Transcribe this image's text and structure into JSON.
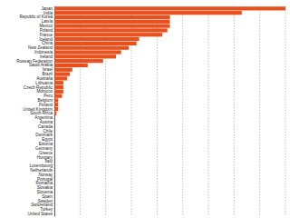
{
  "chart_data": {
    "type": "bar",
    "orientation": "horizontal",
    "categories": [
      "Japan",
      "India",
      "Republic of Korea",
      "Latvia",
      "Mexico",
      "Poland",
      "France",
      "Iceland",
      "China",
      "New Zealand",
      "Indonesia",
      "Ireland",
      "Russian Federation",
      "Saudi Arabia",
      "Israel",
      "Brazil",
      "Australia",
      "Lithuania",
      "Czech Republic",
      "Morocco",
      "Peru",
      "Belgium",
      "Finland",
      "United Kingdom",
      "South Africa",
      "Argentina",
      "Austria",
      "Canada",
      "Chile",
      "Denmark",
      "Egypt",
      "Estonia",
      "Germany",
      "Greece",
      "Hungary",
      "Italy",
      "Luxembourg",
      "Netherlands",
      "Norway",
      "Portugal",
      "Romania",
      "Slovakia",
      "Slovenia",
      "Spain",
      "Sweden",
      "Switzerland",
      "Turkey",
      "United States"
    ],
    "values": [
      9.0,
      7.3,
      4.5,
      4.5,
      4.5,
      4.4,
      4.2,
      3.3,
      3.2,
      2.9,
      2.6,
      2.4,
      1.9,
      1.3,
      0.7,
      0.6,
      0.5,
      0.35,
      0.35,
      0.35,
      0.3,
      0.15,
      0.15,
      0.15,
      0.08,
      0,
      0,
      0,
      0,
      0,
      0,
      0,
      0,
      0,
      0,
      0,
      0,
      0,
      0,
      0,
      0,
      0,
      0,
      0,
      0,
      0,
      0,
      0
    ],
    "color": "#e8511e",
    "xlim": [
      0,
      9
    ],
    "xticks": [
      0,
      1,
      2,
      3,
      4,
      5,
      6,
      7,
      8,
      9
    ],
    "grid": true,
    "tick_labels": "y"
  }
}
